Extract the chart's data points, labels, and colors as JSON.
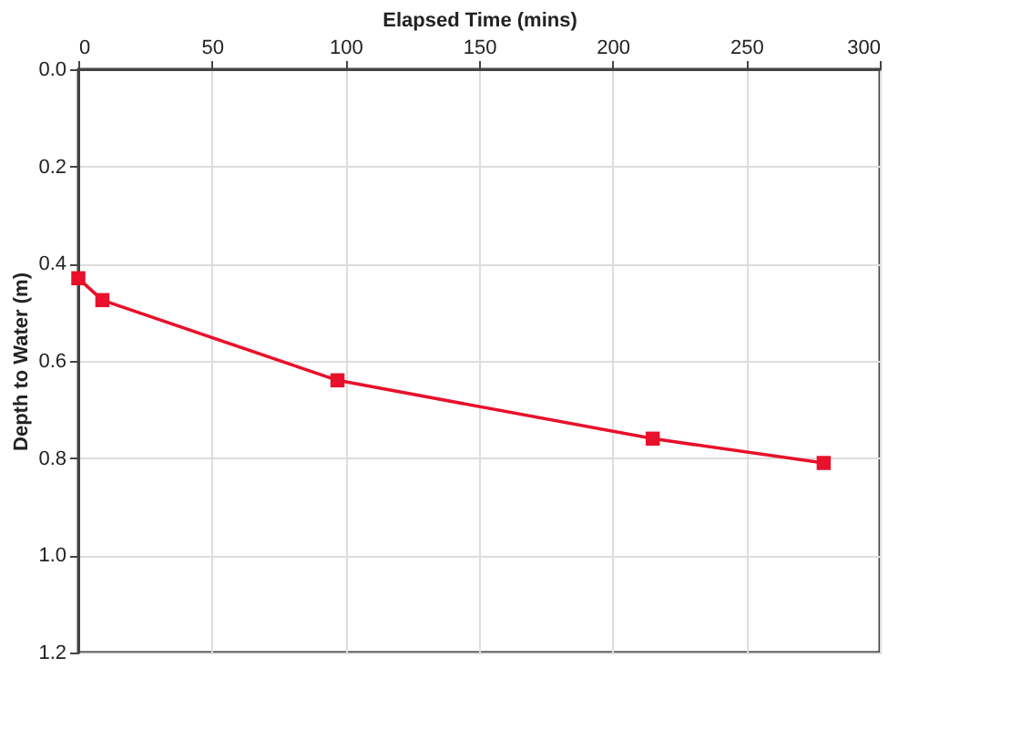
{
  "chart_data": {
    "type": "line",
    "xlabel": "Elapsed Time (mins)",
    "ylabel": "Depth to Water (m)",
    "series": [
      {
        "color": "#e8102a",
        "x": [
          0,
          9,
          97,
          215,
          279
        ],
        "values": [
          0.43,
          0.475,
          0.64,
          0.76,
          0.81
        ]
      }
    ],
    "xlim": [
      0,
      300
    ],
    "xticks": [
      0,
      50,
      100,
      150,
      200,
      250,
      300
    ],
    "ylim": [
      1.2,
      0.0
    ],
    "yticks": [
      {
        "value": 0,
        "label": "0.0"
      },
      0.2,
      0.4,
      0.6,
      0.8,
      {
        "value": 1,
        "label": "1.0"
      },
      1.2
    ],
    "grid": true,
    "marker": "square",
    "line_style": "solid"
  }
}
